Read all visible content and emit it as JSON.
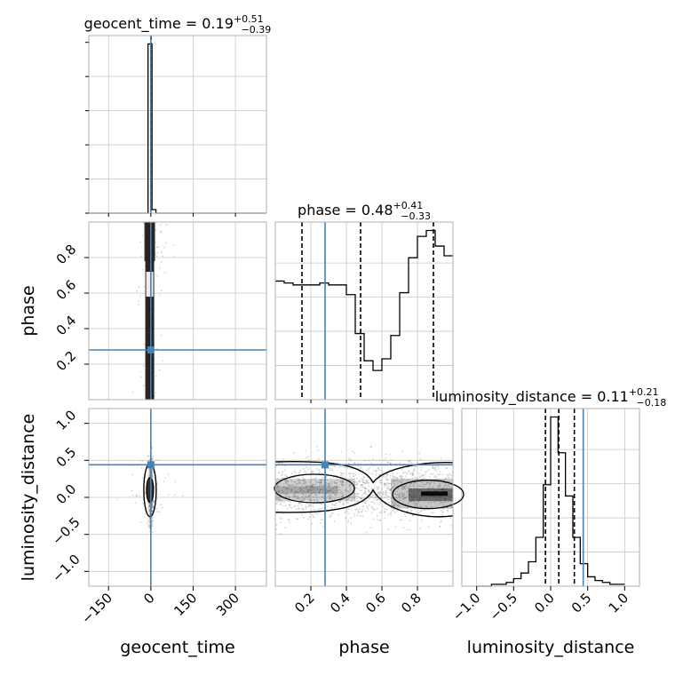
{
  "chart_data": {
    "type": "corner",
    "parameters": [
      "geocent_time",
      "phase",
      "luminosity_distance"
    ],
    "ranges": {
      "geocent_time": [
        -220,
        410
      ],
      "phase": [
        0.0,
        1.0
      ],
      "luminosity_distance": [
        -1.2,
        1.2
      ]
    },
    "ticks": {
      "geocent_time": {
        "values": [
          -150,
          0,
          150,
          300
        ],
        "labels": [
          "−150",
          "0",
          "150",
          "300"
        ]
      },
      "phase": {
        "values": [
          0.2,
          0.4,
          0.6,
          0.8
        ],
        "labels": [
          "0.2",
          "0.4",
          "0.6",
          "0.8"
        ]
      },
      "luminosity_distance": {
        "values": [
          -1.0,
          -0.5,
          0.0,
          0.5,
          1.0
        ],
        "labels": [
          "−1.0",
          "−0.5",
          "0.0",
          "0.5",
          "1.0"
        ]
      }
    },
    "titles": {
      "geocent_time": {
        "name": "geocent_time",
        "median": "0.19",
        "plus": "+0.51",
        "minus": "−0.39"
      },
      "phase": {
        "name": "phase",
        "median": "0.48",
        "plus": "+0.41",
        "minus": "−0.33"
      },
      "luminosity_distance": {
        "name": "luminosity_distance",
        "median": "0.11",
        "plus": "+0.21",
        "minus": "−0.18"
      }
    },
    "truths": {
      "geocent_time": 0.0,
      "phase": 0.28,
      "luminosity_distance": 0.44
    },
    "quantiles": {
      "geocent_time": [
        -0.2,
        0.19,
        0.7
      ],
      "phase": [
        0.15,
        0.48,
        0.89
      ],
      "luminosity_distance": [
        -0.07,
        0.11,
        0.32
      ]
    },
    "histograms": {
      "geocent_time": {
        "edges": [
          -220,
          -206,
          -192,
          -178,
          -164,
          -150,
          -136,
          -122,
          -108,
          -94,
          -80,
          -66,
          -52,
          -38,
          -24,
          -10,
          4,
          18,
          32,
          46,
          60,
          74,
          88,
          102,
          116,
          130,
          144,
          158,
          172,
          186,
          200,
          214,
          228,
          242,
          256,
          270,
          284,
          298,
          312,
          326,
          340,
          354,
          368,
          382,
          396,
          410
        ],
        "counts": [
          0,
          0,
          0,
          0,
          0,
          0,
          0,
          0,
          0,
          0,
          0,
          0,
          0,
          0,
          0,
          0.95,
          0.02,
          0,
          0,
          0,
          0,
          0,
          0,
          0,
          0,
          0,
          0,
          0,
          0,
          0,
          0,
          0,
          0,
          0,
          0,
          0,
          0,
          0,
          0,
          0,
          0,
          0,
          0,
          0,
          0
        ]
      },
      "phase": {
        "edges": [
          0.0,
          0.05,
          0.1,
          0.15,
          0.2,
          0.25,
          0.3,
          0.35,
          0.4,
          0.45,
          0.5,
          0.55,
          0.6,
          0.65,
          0.7,
          0.75,
          0.8,
          0.85,
          0.9,
          0.95,
          1.0
        ],
        "counts": [
          0.61,
          0.6,
          0.59,
          0.59,
          0.59,
          0.6,
          0.59,
          0.59,
          0.54,
          0.34,
          0.2,
          0.15,
          0.21,
          0.33,
          0.55,
          0.73,
          0.84,
          0.87,
          0.79,
          0.74
        ]
      },
      "luminosity_distance": {
        "edges": [
          -1.0,
          -0.9,
          -0.8,
          -0.7,
          -0.6,
          -0.5,
          -0.4,
          -0.3,
          -0.2,
          -0.1,
          0.0,
          0.1,
          0.2,
          0.3,
          0.4,
          0.5,
          0.6,
          0.7,
          0.8,
          0.9,
          1.0
        ],
        "counts": [
          0.0,
          0.0,
          0.01,
          0.01,
          0.02,
          0.04,
          0.07,
          0.13,
          0.26,
          0.54,
          0.9,
          0.71,
          0.48,
          0.26,
          0.12,
          0.05,
          0.03,
          0.02,
          0.01,
          0.01
        ]
      }
    },
    "axis_labels": {
      "x": [
        "geocent_time",
        "phase",
        "luminosity_distance"
      ],
      "y": [
        "phase",
        "luminosity_distance"
      ]
    },
    "grid": true,
    "colors": {
      "truth": "#4682b4",
      "hist": "#000000",
      "scatter": "#888888"
    }
  }
}
